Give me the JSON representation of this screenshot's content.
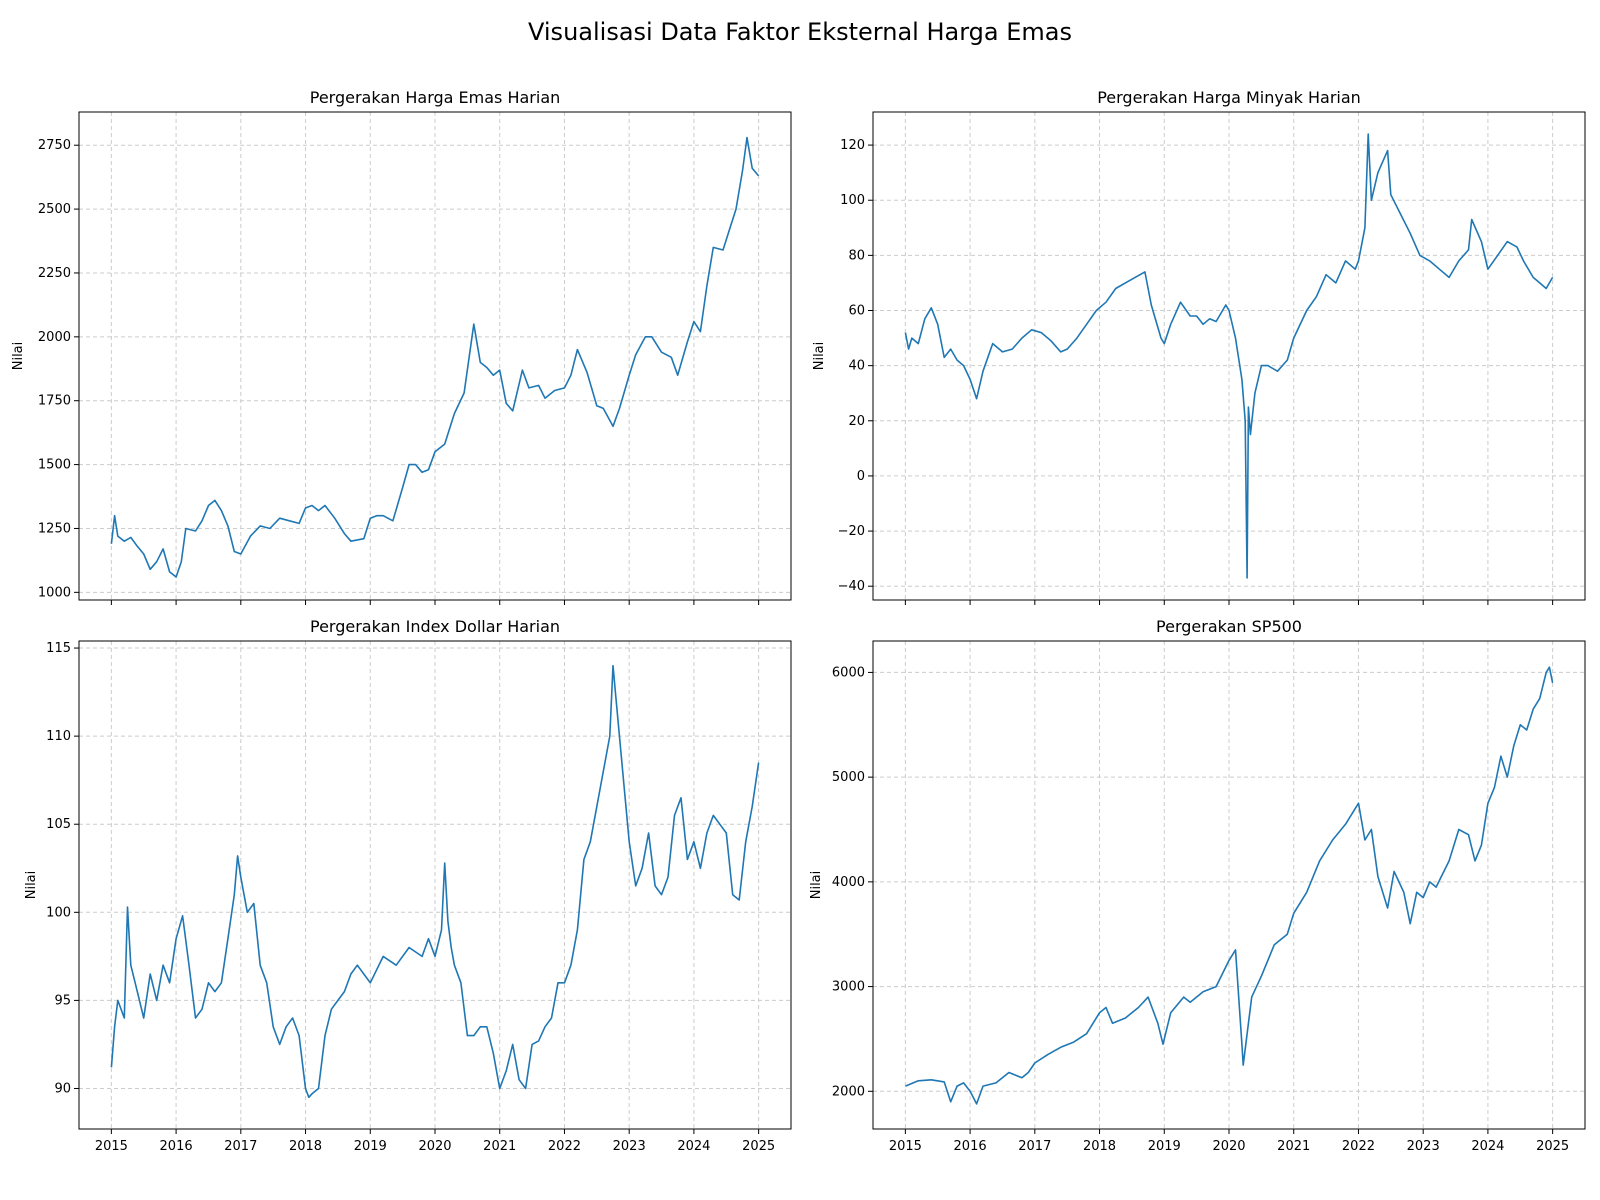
{
  "figure": {
    "suptitle": "Visualisasi Data Faktor Eksternal Harga Emas"
  },
  "colors": {
    "line": "#1f77b4",
    "grid": "#cccccc",
    "axis": "#000000"
  },
  "chart_data": [
    {
      "type": "line",
      "title": "Pergerakan Harga Emas Harian",
      "xlabel": "",
      "ylabel": "Nilai",
      "xlim": [
        2014.5,
        2025.5
      ],
      "ylim": [
        970,
        2880
      ],
      "yticks": [
        1000,
        1250,
        1500,
        1750,
        2000,
        2250,
        2500,
        2750
      ],
      "xticks": [
        2015,
        2016,
        2017,
        2018,
        2019,
        2020,
        2021,
        2022,
        2023,
        2024,
        2025
      ],
      "show_xticklabels": false,
      "grid": true,
      "series": [
        {
          "x": [
            2015.0,
            2015.05,
            2015.1,
            2015.2,
            2015.3,
            2015.4,
            2015.5,
            2015.6,
            2015.7,
            2015.8,
            2015.9,
            2016.0,
            2016.08,
            2016.15,
            2016.3,
            2016.4,
            2016.5,
            2016.6,
            2016.7,
            2016.8,
            2016.9,
            2017.0,
            2017.15,
            2017.3,
            2017.45,
            2017.6,
            2017.75,
            2017.9,
            2018.0,
            2018.1,
            2018.2,
            2018.3,
            2018.45,
            2018.6,
            2018.7,
            2018.9,
            2019.0,
            2019.1,
            2019.2,
            2019.35,
            2019.5,
            2019.6,
            2019.7,
            2019.8,
            2019.9,
            2020.0,
            2020.15,
            2020.3,
            2020.45,
            2020.6,
            2020.7,
            2020.8,
            2020.9,
            2021.0,
            2021.1,
            2021.2,
            2021.35,
            2021.45,
            2021.6,
            2021.7,
            2021.85,
            2022.0,
            2022.1,
            2022.2,
            2022.35,
            2022.5,
            2022.6,
            2022.75,
            2022.85,
            2023.0,
            2023.1,
            2023.25,
            2023.35,
            2023.5,
            2023.65,
            2023.75,
            2023.9,
            2024.0,
            2024.1,
            2024.2,
            2024.3,
            2024.45,
            2024.55,
            2024.65,
            2024.75,
            2024.82,
            2024.9,
            2025.0
          ],
          "y": [
            1190,
            1300,
            1220,
            1200,
            1215,
            1180,
            1150,
            1090,
            1120,
            1170,
            1080,
            1060,
            1120,
            1250,
            1240,
            1280,
            1340,
            1360,
            1320,
            1260,
            1160,
            1150,
            1220,
            1260,
            1250,
            1290,
            1280,
            1270,
            1330,
            1340,
            1320,
            1340,
            1290,
            1230,
            1200,
            1210,
            1290,
            1300,
            1300,
            1280,
            1410,
            1500,
            1500,
            1470,
            1480,
            1550,
            1580,
            1700,
            1780,
            2050,
            1900,
            1880,
            1850,
            1870,
            1740,
            1710,
            1870,
            1800,
            1810,
            1760,
            1790,
            1800,
            1850,
            1950,
            1860,
            1730,
            1720,
            1650,
            1720,
            1850,
            1930,
            2000,
            2000,
            1940,
            1920,
            1850,
            1980,
            2060,
            2020,
            2200,
            2350,
            2340,
            2420,
            2500,
            2650,
            2780,
            2660,
            2630
          ]
        }
      ]
    },
    {
      "type": "line",
      "title": "Pergerakan Harga Minyak Harian",
      "xlabel": "",
      "ylabel": "Nilai",
      "xlim": [
        2014.5,
        2025.5
      ],
      "ylim": [
        -45,
        132
      ],
      "yticks": [
        -40,
        -20,
        0,
        20,
        40,
        60,
        80,
        100,
        120
      ],
      "xticks": [
        2015,
        2016,
        2017,
        2018,
        2019,
        2020,
        2021,
        2022,
        2023,
        2024,
        2025
      ],
      "show_xticklabels": false,
      "grid": true,
      "series": [
        {
          "x": [
            2015.0,
            2015.05,
            2015.1,
            2015.2,
            2015.3,
            2015.4,
            2015.5,
            2015.6,
            2015.7,
            2015.8,
            2015.9,
            2016.0,
            2016.1,
            2016.2,
            2016.35,
            2016.5,
            2016.65,
            2016.8,
            2016.95,
            2017.1,
            2017.25,
            2017.4,
            2017.5,
            2017.65,
            2017.8,
            2017.95,
            2018.1,
            2018.25,
            2018.4,
            2018.55,
            2018.7,
            2018.8,
            2018.95,
            2019.0,
            2019.1,
            2019.25,
            2019.4,
            2019.5,
            2019.6,
            2019.7,
            2019.8,
            2019.95,
            2020.0,
            2020.1,
            2020.2,
            2020.25,
            2020.28,
            2020.3,
            2020.33,
            2020.4,
            2020.5,
            2020.6,
            2020.75,
            2020.9,
            2021.0,
            2021.2,
            2021.35,
            2021.5,
            2021.65,
            2021.8,
            2021.95,
            2022.0,
            2022.1,
            2022.15,
            2022.2,
            2022.3,
            2022.45,
            2022.5,
            2022.65,
            2022.8,
            2022.95,
            2023.1,
            2023.25,
            2023.4,
            2023.55,
            2023.7,
            2023.75,
            2023.9,
            2024.0,
            2024.15,
            2024.3,
            2024.45,
            2024.55,
            2024.7,
            2024.8,
            2024.9,
            2025.0
          ],
          "y": [
            52,
            46,
            50,
            48,
            57,
            61,
            55,
            43,
            46,
            42,
            40,
            35,
            28,
            38,
            48,
            45,
            46,
            50,
            53,
            52,
            49,
            45,
            46,
            50,
            55,
            60,
            63,
            68,
            70,
            72,
            74,
            62,
            50,
            48,
            55,
            63,
            58,
            58,
            55,
            57,
            56,
            62,
            60,
            50,
            35,
            20,
            -37,
            25,
            15,
            30,
            40,
            40,
            38,
            42,
            50,
            60,
            65,
            73,
            70,
            78,
            75,
            78,
            90,
            124,
            100,
            110,
            118,
            102,
            95,
            88,
            80,
            78,
            75,
            72,
            78,
            82,
            93,
            85,
            75,
            80,
            85,
            83,
            78,
            72,
            70,
            68,
            72
          ]
        }
      ]
    },
    {
      "type": "line",
      "title": "Pergerakan Index Dollar Harian",
      "xlabel": "",
      "ylabel": "Nilai",
      "xlim": [
        2014.5,
        2025.5
      ],
      "ylim": [
        87.7,
        115.4
      ],
      "yticks": [
        90,
        95,
        100,
        105,
        110,
        115
      ],
      "xticks": [
        2015,
        2016,
        2017,
        2018,
        2019,
        2020,
        2021,
        2022,
        2023,
        2024,
        2025
      ],
      "show_xticklabels": true,
      "grid": true,
      "series": [
        {
          "x": [
            2015.0,
            2015.05,
            2015.1,
            2015.2,
            2015.25,
            2015.3,
            2015.4,
            2015.5,
            2015.6,
            2015.7,
            2015.8,
            2015.9,
            2016.0,
            2016.1,
            2016.2,
            2016.3,
            2016.4,
            2016.5,
            2016.6,
            2016.7,
            2016.8,
            2016.9,
            2016.95,
            2017.0,
            2017.1,
            2017.2,
            2017.3,
            2017.4,
            2017.5,
            2017.6,
            2017.7,
            2017.8,
            2017.9,
            2018.0,
            2018.05,
            2018.1,
            2018.2,
            2018.3,
            2018.4,
            2018.5,
            2018.6,
            2018.7,
            2018.8,
            2018.9,
            2019.0,
            2019.2,
            2019.4,
            2019.6,
            2019.8,
            2019.9,
            2020.0,
            2020.1,
            2020.15,
            2020.2,
            2020.25,
            2020.3,
            2020.4,
            2020.5,
            2020.6,
            2020.7,
            2020.8,
            2020.9,
            2021.0,
            2021.1,
            2021.2,
            2021.3,
            2021.4,
            2021.5,
            2021.6,
            2021.7,
            2021.8,
            2021.9,
            2022.0,
            2022.1,
            2022.2,
            2022.3,
            2022.4,
            2022.5,
            2022.6,
            2022.7,
            2022.75,
            2022.8,
            2022.9,
            2023.0,
            2023.1,
            2023.2,
            2023.3,
            2023.4,
            2023.5,
            2023.6,
            2023.7,
            2023.8,
            2023.9,
            2024.0,
            2024.1,
            2024.2,
            2024.3,
            2024.4,
            2024.5,
            2024.6,
            2024.7,
            2024.8,
            2024.9,
            2025.0
          ],
          "y": [
            91.2,
            93.5,
            95,
            94,
            100.3,
            97,
            95.5,
            94,
            96.5,
            95,
            97,
            96,
            98.5,
            99.8,
            97,
            94,
            94.5,
            96,
            95.5,
            96,
            98.5,
            101,
            103.2,
            102,
            100,
            100.5,
            97,
            96,
            93.5,
            92.5,
            93.5,
            94,
            93,
            90,
            89.5,
            89.7,
            90,
            93,
            94.5,
            95,
            95.5,
            96.5,
            97,
            96.5,
            96,
            97.5,
            97,
            98,
            97.5,
            98.5,
            97.5,
            99,
            102.8,
            99.5,
            98,
            97,
            96,
            93,
            93,
            93.5,
            93.5,
            92,
            90,
            91,
            92.5,
            90.5,
            90,
            92.5,
            92.7,
            93.5,
            94,
            96,
            96,
            97,
            99,
            103,
            104,
            106,
            108,
            110,
            114,
            112,
            108,
            104,
            101.5,
            102.5,
            104.5,
            101.5,
            101,
            102,
            105.5,
            106.5,
            103,
            104,
            102.5,
            104.5,
            105.5,
            105,
            104.5,
            101,
            100.7,
            104,
            106,
            108.5
          ]
        }
      ]
    },
    {
      "type": "line",
      "title": "Pergerakan SP500",
      "xlabel": "",
      "ylabel": "Nilai",
      "xlim": [
        2014.5,
        2025.5
      ],
      "ylim": [
        1640,
        6300
      ],
      "yticks": [
        2000,
        3000,
        4000,
        5000,
        6000
      ],
      "xticks": [
        2015,
        2016,
        2017,
        2018,
        2019,
        2020,
        2021,
        2022,
        2023,
        2024,
        2025
      ],
      "show_xticklabels": true,
      "grid": true,
      "series": [
        {
          "x": [
            2015.0,
            2015.2,
            2015.4,
            2015.6,
            2015.7,
            2015.8,
            2015.9,
            2016.0,
            2016.1,
            2016.2,
            2016.4,
            2016.6,
            2016.8,
            2016.9,
            2017.0,
            2017.2,
            2017.4,
            2017.6,
            2017.8,
            2018.0,
            2018.1,
            2018.2,
            2018.4,
            2018.6,
            2018.75,
            2018.9,
            2018.98,
            2019.1,
            2019.3,
            2019.4,
            2019.6,
            2019.8,
            2020.0,
            2020.1,
            2020.2,
            2020.22,
            2020.35,
            2020.5,
            2020.7,
            2020.9,
            2021.0,
            2021.2,
            2021.4,
            2021.6,
            2021.8,
            2021.95,
            2022.0,
            2022.1,
            2022.2,
            2022.3,
            2022.45,
            2022.55,
            2022.7,
            2022.8,
            2022.9,
            2023.0,
            2023.1,
            2023.2,
            2023.4,
            2023.55,
            2023.7,
            2023.8,
            2023.9,
            2024.0,
            2024.1,
            2024.2,
            2024.3,
            2024.4,
            2024.5,
            2024.6,
            2024.7,
            2024.8,
            2024.9,
            2024.95,
            2025.0
          ],
          "y": [
            2050,
            2100,
            2110,
            2090,
            1900,
            2050,
            2080,
            2000,
            1880,
            2050,
            2080,
            2180,
            2130,
            2180,
            2270,
            2350,
            2420,
            2470,
            2550,
            2750,
            2800,
            2650,
            2700,
            2800,
            2900,
            2650,
            2450,
            2750,
            2900,
            2850,
            2950,
            3000,
            3250,
            3350,
            2450,
            2250,
            2900,
            3100,
            3400,
            3500,
            3700,
            3900,
            4200,
            4400,
            4550,
            4700,
            4750,
            4400,
            4500,
            4050,
            3750,
            4100,
            3900,
            3600,
            3900,
            3850,
            4000,
            3950,
            4200,
            4500,
            4450,
            4200,
            4350,
            4750,
            4900,
            5200,
            5000,
            5300,
            5500,
            5450,
            5650,
            5750,
            6000,
            6050,
            5900
          ]
        }
      ]
    }
  ]
}
